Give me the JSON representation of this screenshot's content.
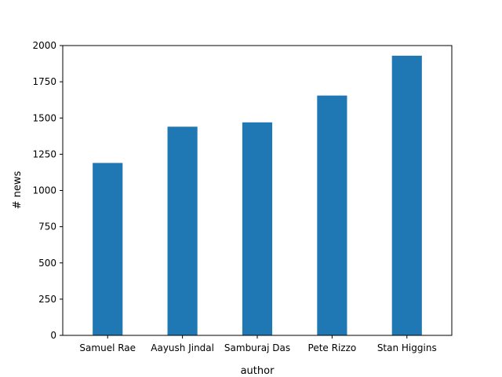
{
  "chart_data": {
    "type": "bar",
    "categories": [
      "Samuel Rae",
      "Aayush Jindal",
      "Samburaj Das",
      "Pete Rizzo",
      "Stan Higgins"
    ],
    "values": [
      1190,
      1440,
      1470,
      1655,
      1930
    ],
    "xlabel": "author",
    "ylabel": "# news",
    "ylim": [
      0,
      2000
    ],
    "yticks": [
      "0",
      "250",
      "500",
      "750",
      "1000",
      "1250",
      "1500",
      "1750",
      "2000"
    ],
    "grid": false,
    "legend": "none",
    "bar_color": "#1f77b4"
  }
}
